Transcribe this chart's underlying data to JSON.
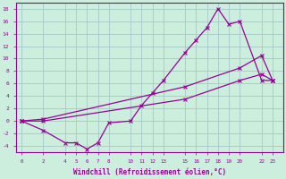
{
  "xlabel": "Windchill (Refroidissement éolien,°C)",
  "bg_color": "#cceedd",
  "grid_color": "#aacccc",
  "line_color": "#990099",
  "line1_x": [
    0,
    2,
    4,
    5,
    6,
    7,
    8,
    10,
    11,
    12,
    13,
    15,
    16,
    17,
    18,
    19,
    20,
    22,
    23
  ],
  "line1_y": [
    0,
    -1.5,
    -3.5,
    -3.5,
    -4.5,
    -3.5,
    -0.3,
    0.0,
    2.5,
    4.5,
    6.5,
    11.0,
    13.0,
    15.0,
    18.0,
    15.5,
    16.0,
    6.5,
    6.5
  ],
  "line2_x": [
    0,
    2,
    15,
    20,
    22,
    23
  ],
  "line2_y": [
    0,
    0.3,
    5.5,
    8.5,
    10.5,
    6.5
  ],
  "line3_x": [
    0,
    2,
    15,
    20,
    22,
    23
  ],
  "line3_y": [
    0,
    0.0,
    3.5,
    6.5,
    7.5,
    6.5
  ],
  "xticks": [
    0,
    2,
    4,
    5,
    6,
    7,
    8,
    10,
    11,
    12,
    13,
    15,
    16,
    17,
    18,
    19,
    20,
    22,
    23
  ],
  "yticks": [
    -4,
    -2,
    0,
    2,
    4,
    6,
    8,
    10,
    12,
    14,
    16,
    18
  ],
  "ylim": [
    -5,
    19
  ],
  "xlim": [
    -0.5,
    24
  ]
}
